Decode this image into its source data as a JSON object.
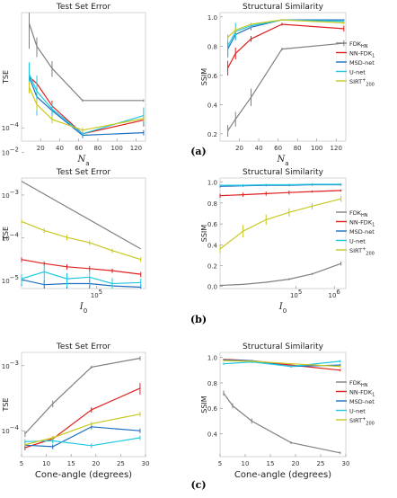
{
  "captions": [
    "(a)",
    "(b)",
    "(c)"
  ],
  "legend": {
    "entries": [
      {
        "label": "FDK",
        "sub": "HN",
        "sup": "",
        "color": "#808080"
      },
      {
        "label": "NN-FDK",
        "sub": "1",
        "sup": "",
        "color": "#e02020"
      },
      {
        "label": "MSD-net",
        "sub": "",
        "sup": "",
        "color": "#1f6fc0"
      },
      {
        "label": "U-net",
        "sub": "",
        "sup": "",
        "color": "#20c8e0"
      },
      {
        "label": "SIRT",
        "sub": "200",
        "sup": "+",
        "color": "#c8c820"
      }
    ]
  },
  "chart_data": [
    {
      "id": "a-tse",
      "type": "line",
      "title": "Test Set Error",
      "xlabel": "N_a",
      "ylabel": "TSE",
      "xscale": "linear",
      "yscale": "log",
      "xlim": [
        0,
        130
      ],
      "ylim": [
        7.5e-05,
        0.0012
      ],
      "xticks": [
        {
          "v": 20,
          "t": "20"
        },
        {
          "v": 40,
          "t": "40"
        },
        {
          "v": 60,
          "t": "60"
        },
        {
          "v": 80,
          "t": "80"
        },
        {
          "v": 100,
          "t": "100"
        },
        {
          "v": 120,
          "t": "120"
        }
      ],
      "yticks": [
        {
          "v": 0.0001,
          "base": "10",
          "exp": "−4"
        }
      ],
      "series": [
        {
          "name": "FDK_HN",
          "color": "#808080",
          "x": [
            8,
            16,
            32,
            64,
            128
          ],
          "y": [
            0.00095,
            0.00058,
            0.00036,
            0.00018,
            0.00018
          ],
          "err": [
            0.0004,
            0.00012,
            6e-05,
            5e-06,
            5e-06
          ]
        },
        {
          "name": "NN-FDK_1",
          "color": "#e02020",
          "x": [
            8,
            16,
            32,
            64,
            128
          ],
          "y": [
            0.0003,
            0.00026,
            0.00016,
            8.8e-05,
            0.000118
          ],
          "err": [
            5e-05,
            4e-05,
            2e-05,
            5e-06,
            1.5e-05
          ]
        },
        {
          "name": "MSD-net",
          "color": "#1f6fc0",
          "x": [
            8,
            16,
            32,
            64,
            128
          ],
          "y": [
            0.0003,
            0.000195,
            0.000145,
            8.5e-05,
            9e-05
          ],
          "err": [
            7e-05,
            4e-05,
            2e-05,
            5e-06,
            5e-06
          ]
        },
        {
          "name": "U-net",
          "color": "#20c8e0",
          "x": [
            8,
            16,
            32,
            64,
            128
          ],
          "y": [
            0.00032,
            0.00022,
            0.00015,
            8.8e-05,
            0.00013
          ],
          "err": [
            9e-05,
            9e-05,
            2e-05,
            5e-06,
            2.5e-05
          ]
        },
        {
          "name": "SIRT_200",
          "color": "#c8c820",
          "x": [
            8,
            16,
            32,
            64,
            128
          ],
          "y": [
            0.00024,
            0.000165,
            0.00012,
            9.5e-05,
            0.000122
          ],
          "err": [
            3e-05,
            2e-05,
            1e-05,
            5e-06,
            8e-06
          ]
        }
      ]
    },
    {
      "id": "a-ssim",
      "type": "line",
      "title": "Structural Similarity",
      "xlabel": "N_a",
      "ylabel": "SSIM",
      "xscale": "linear",
      "yscale": "linear",
      "xlim": [
        0,
        130
      ],
      "ylim": [
        0.15,
        1.03
      ],
      "xticks": [
        {
          "v": 20,
          "t": "20"
        },
        {
          "v": 40,
          "t": "40"
        },
        {
          "v": 60,
          "t": "60"
        },
        {
          "v": 80,
          "t": "80"
        },
        {
          "v": 100,
          "t": "100"
        },
        {
          "v": 120,
          "t": "120"
        }
      ],
      "yticks": [
        {
          "v": 0.2,
          "t": "0.2"
        },
        {
          "v": 0.4,
          "t": "0.4"
        },
        {
          "v": 0.6,
          "t": "0.6"
        },
        {
          "v": 0.8,
          "t": "0.8"
        },
        {
          "v": 1.0,
          "t": "1.0"
        }
      ],
      "series": [
        {
          "name": "FDK_HN",
          "color": "#808080",
          "x": [
            8,
            16,
            32,
            64,
            128
          ],
          "y": [
            0.22,
            0.3,
            0.45,
            0.78,
            0.82
          ],
          "err": [
            0.04,
            0.05,
            0.06,
            0.01,
            0.02
          ]
        },
        {
          "name": "NN-FDK_1",
          "color": "#e02020",
          "x": [
            8,
            16,
            32,
            64,
            128
          ],
          "y": [
            0.65,
            0.75,
            0.85,
            0.95,
            0.92
          ],
          "err": [
            0.05,
            0.04,
            0.02,
            0.01,
            0.02
          ]
        },
        {
          "name": "MSD-net",
          "color": "#1f6fc0",
          "x": [
            8,
            16,
            32,
            64,
            128
          ],
          "y": [
            0.78,
            0.88,
            0.93,
            0.98,
            0.98
          ],
          "err": [
            0.05,
            0.04,
            0.02,
            0.005,
            0.005
          ]
        },
        {
          "name": "U-net",
          "color": "#20c8e0",
          "x": [
            8,
            16,
            32,
            64,
            128
          ],
          "y": [
            0.8,
            0.9,
            0.94,
            0.98,
            0.97
          ],
          "err": [
            0.08,
            0.06,
            0.02,
            0.005,
            0.01
          ]
        },
        {
          "name": "SIRT_200",
          "color": "#c8c820",
          "x": [
            8,
            16,
            32,
            64,
            128
          ],
          "y": [
            0.86,
            0.91,
            0.95,
            0.98,
            0.96
          ],
          "err": [
            0.02,
            0.02,
            0.01,
            0.005,
            0.01
          ]
        }
      ]
    },
    {
      "id": "b-tse",
      "type": "line",
      "title": "Test Set Error",
      "xlabel": "I_0",
      "ylabel": "TSE",
      "xscale": "log",
      "yscale": "log",
      "xlim": [
        1024,
        2000000
      ],
      "ylim": [
        6.5e-06,
        0.0025
      ],
      "xticks": [
        {
          "v": 100000,
          "base": "10",
          "exp": "5"
        }
      ],
      "yticks": [
        {
          "v": 1e-05,
          "base": "10",
          "exp": "−5"
        },
        {
          "v": 0.0001,
          "base": "10",
          "exp": "−4"
        },
        {
          "v": 0.001,
          "base": "10",
          "exp": "−3"
        },
        {
          "v": 0.01,
          "base": "10",
          "exp": "−2"
        }
      ],
      "series": [
        {
          "name": "FDK_HN",
          "color": "#808080",
          "x": [
            1024,
            1500000
          ],
          "y": [
            0.0021,
            5.5e-05
          ],
          "err": [
            0,
            0
          ]
        },
        {
          "name": "NN-FDK_1",
          "color": "#e02020",
          "x": [
            1024,
            4096,
            16384,
            65536,
            262144,
            1500000
          ],
          "y": [
            3.1e-05,
            2.5e-05,
            2.1e-05,
            1.9e-05,
            1.7e-05,
            1.4e-05
          ],
          "err": [
            4e-06,
            3e-06,
            3e-06,
            3e-06,
            2e-06,
            2e-06
          ]
        },
        {
          "name": "MSD-net",
          "color": "#1f6fc0",
          "x": [
            1024,
            4096,
            16384,
            65536,
            262144,
            1500000
          ],
          "y": [
            1.05e-05,
            8e-06,
            8.5e-06,
            8.5e-06,
            7.5e-06,
            7e-06
          ],
          "err": [
            3e-06,
            2e-06,
            3e-06,
            3e-06,
            2e-06,
            1e-06
          ]
        },
        {
          "name": "U-net",
          "color": "#20c8e0",
          "x": [
            1024,
            4096,
            16384,
            65536,
            262144,
            1500000
          ],
          "y": [
            1.1e-05,
            1.6e-05,
            1.1e-05,
            1.2e-05,
            8.5e-06,
            9e-06
          ],
          "err": [
            3e-06,
            8e-06,
            4e-06,
            5e-06,
            3e-06,
            2e-06
          ]
        },
        {
          "name": "SIRT_200",
          "color": "#c8c820",
          "x": [
            1024,
            4096,
            16384,
            65536,
            262144,
            1500000
          ],
          "y": [
            0.00024,
            0.000148,
            0.000102,
            7.7e-05,
            5e-05,
            3.1e-05
          ],
          "err": [
            3e-05,
            2e-05,
            1.5e-05,
            1e-05,
            6e-06,
            4e-06
          ]
        }
      ]
    },
    {
      "id": "b-ssim",
      "type": "line",
      "title": "Structural Similarity",
      "xlabel": "I_0",
      "ylabel": "SSIM",
      "xscale": "log",
      "yscale": "linear",
      "xlim": [
        1024,
        2000000
      ],
      "ylim": [
        -0.02,
        1.04
      ],
      "xticks": [
        {
          "v": 100000,
          "base": "10",
          "exp": "5"
        },
        {
          "v": 1000000,
          "base": "10",
          "exp": "6"
        }
      ],
      "yticks": [
        {
          "v": 0.0,
          "t": "0.0"
        },
        {
          "v": 0.2,
          "t": "0.2"
        },
        {
          "v": 0.4,
          "t": "0.4"
        },
        {
          "v": 0.6,
          "t": "0.6"
        },
        {
          "v": 0.8,
          "t": "0.8"
        },
        {
          "v": 1.0,
          "t": "1.0"
        }
      ],
      "series": [
        {
          "name": "FDK_HN",
          "color": "#808080",
          "x": [
            1024,
            4096,
            16384,
            65536,
            262144,
            1500000
          ],
          "y": [
            0.01,
            0.02,
            0.04,
            0.07,
            0.12,
            0.22
          ],
          "err": [
            0.005,
            0.005,
            0.005,
            0.01,
            0.01,
            0.02
          ]
        },
        {
          "name": "NN-FDK_1",
          "color": "#e02020",
          "x": [
            1024,
            4096,
            16384,
            65536,
            262144,
            1500000
          ],
          "y": [
            0.87,
            0.88,
            0.89,
            0.9,
            0.91,
            0.92
          ],
          "err": [
            0.02,
            0.02,
            0.02,
            0.02,
            0.01,
            0.01
          ]
        },
        {
          "name": "MSD-net",
          "color": "#1f6fc0",
          "x": [
            1024,
            4096,
            16384,
            65536,
            262144,
            1500000
          ],
          "y": [
            0.96,
            0.965,
            0.97,
            0.97,
            0.975,
            0.975
          ],
          "err": [
            0.01,
            0.01,
            0.01,
            0.01,
            0.01,
            0.01
          ]
        },
        {
          "name": "U-net",
          "color": "#20c8e0",
          "x": [
            1024,
            4096,
            16384,
            65536,
            262144,
            1500000
          ],
          "y": [
            0.97,
            0.97,
            0.975,
            0.975,
            0.98,
            0.98
          ],
          "err": [
            0.01,
            0.01,
            0.01,
            0.01,
            0.01,
            0.01
          ]
        },
        {
          "name": "SIRT_200",
          "color": "#c8c820",
          "x": [
            1024,
            4096,
            16384,
            65536,
            262144,
            1500000
          ],
          "y": [
            0.36,
            0.53,
            0.64,
            0.71,
            0.77,
            0.84
          ],
          "err": [
            0.04,
            0.06,
            0.05,
            0.04,
            0.03,
            0.03
          ]
        }
      ]
    },
    {
      "id": "c-tse",
      "type": "line",
      "title": "Test Set Error",
      "xlabel": "Cone-angle (degrees)",
      "ylabel": "TSE",
      "xscale": "linear",
      "yscale": "log",
      "xlim": [
        5,
        30
      ],
      "ylim": [
        4e-05,
        0.0016
      ],
      "xticks": [
        {
          "v": 5,
          "t": "5"
        },
        {
          "v": 10,
          "t": "10"
        },
        {
          "v": 15,
          "t": "15"
        },
        {
          "v": 20,
          "t": "20"
        },
        {
          "v": 25,
          "t": "25"
        },
        {
          "v": 30,
          "t": "30"
        }
      ],
      "yticks": [
        {
          "v": 0.0001,
          "base": "10",
          "exp": "−4"
        },
        {
          "v": 0.001,
          "base": "10",
          "exp": "−3"
        }
      ],
      "series": [
        {
          "name": "FDK_HN",
          "color": "#808080",
          "x": [
            5.7,
            11.3,
            19.1,
            28.9
          ],
          "y": [
            9e-05,
            0.00026,
            0.00095,
            0.0013
          ],
          "err": [
            1e-05,
            3e-05,
            5e-05,
            0.0001
          ]
        },
        {
          "name": "NN-FDK_1",
          "color": "#e02020",
          "x": [
            5.7,
            11.3,
            19.1,
            28.9
          ],
          "y": [
            5.5e-05,
            7.5e-05,
            0.00021,
            0.00045
          ],
          "err": [
            5e-06,
            8e-06,
            2e-05,
            9e-05
          ]
        },
        {
          "name": "MSD-net",
          "color": "#1f6fc0",
          "x": [
            5.7,
            11.3,
            19.1,
            28.9
          ],
          "y": [
            6e-05,
            5.7e-05,
            0.000115,
            0.0001
          ],
          "err": [
            6e-06,
            5e-06,
            1e-05,
            8e-06
          ]
        },
        {
          "name": "U-net",
          "color": "#20c8e0",
          "x": [
            5.7,
            11.3,
            19.1,
            28.9
          ],
          "y": [
            6.8e-05,
            7e-05,
            5.9e-05,
            7.8e-05
          ],
          "err": [
            6e-06,
            6e-06,
            5e-06,
            6e-06
          ]
        },
        {
          "name": "SIRT_200",
          "color": "#c8c820",
          "x": [
            5.7,
            11.3,
            19.1,
            28.9
          ],
          "y": [
            6.1e-05,
            7.8e-05,
            0.000128,
            0.00018
          ],
          "err": [
            4e-06,
            5e-06,
            1e-05,
            1.5e-05
          ]
        }
      ]
    },
    {
      "id": "c-ssim",
      "type": "line",
      "title": "Structural Similarity",
      "xlabel": "Cone-angle (degrees)",
      "ylabel": "SSIM",
      "xscale": "linear",
      "yscale": "linear",
      "xlim": [
        5,
        30
      ],
      "ylim": [
        0.22,
        1.04
      ],
      "xticks": [
        {
          "v": 5,
          "t": "5"
        },
        {
          "v": 10,
          "t": "10"
        },
        {
          "v": 15,
          "t": "15"
        },
        {
          "v": 20,
          "t": "20"
        },
        {
          "v": 25,
          "t": "25"
        },
        {
          "v": 30,
          "t": "30"
        }
      ],
      "yticks": [
        {
          "v": 0.4,
          "t": "0.4"
        },
        {
          "v": 0.6,
          "t": "0.6"
        },
        {
          "v": 0.8,
          "t": "0.8"
        },
        {
          "v": 1.0,
          "t": "1.0"
        }
      ],
      "series": [
        {
          "name": "FDK_HN",
          "color": "#808080",
          "x": [
            5.7,
            7.5,
            11.3,
            19.1,
            28.9
          ],
          "y": [
            0.72,
            0.62,
            0.5,
            0.33,
            0.25
          ],
          "err": [
            0.02,
            0.02,
            0.02,
            0.01,
            0.01
          ]
        },
        {
          "name": "NN-FDK_1",
          "color": "#e02020",
          "x": [
            5.7,
            11.3,
            19.1,
            28.9
          ],
          "y": [
            0.985,
            0.975,
            0.94,
            0.9
          ],
          "err": [
            0.005,
            0.005,
            0.01,
            0.01
          ]
        },
        {
          "name": "MSD-net",
          "color": "#1f6fc0",
          "x": [
            5.7,
            11.3,
            19.1,
            28.9
          ],
          "y": [
            0.98,
            0.975,
            0.93,
            0.94
          ],
          "err": [
            0.005,
            0.005,
            0.01,
            0.01
          ]
        },
        {
          "name": "U-net",
          "color": "#20c8e0",
          "x": [
            5.7,
            11.3,
            19.1,
            28.9
          ],
          "y": [
            0.95,
            0.965,
            0.93,
            0.97
          ],
          "err": [
            0.01,
            0.01,
            0.01,
            0.01
          ]
        },
        {
          "name": "SIRT_200",
          "color": "#c8c820",
          "x": [
            5.7,
            11.3,
            19.1,
            28.9
          ],
          "y": [
            0.975,
            0.97,
            0.95,
            0.93
          ],
          "err": [
            0.005,
            0.005,
            0.005,
            0.01
          ]
        }
      ]
    }
  ]
}
